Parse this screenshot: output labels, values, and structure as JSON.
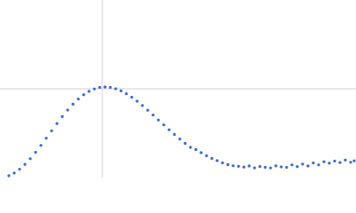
{
  "chart_data": {
    "type": "scatter",
    "x": [
      10,
      16,
      22,
      28,
      34,
      40,
      46,
      52,
      58,
      64,
      70,
      76,
      82,
      88,
      94,
      100,
      106,
      112,
      118,
      124,
      130,
      136,
      142,
      148,
      154,
      160,
      166,
      172,
      178,
      184,
      190,
      196,
      202,
      208,
      214,
      220,
      226,
      232,
      238,
      244,
      250,
      256,
      262,
      268,
      274,
      280,
      286,
      292,
      298,
      304,
      310,
      316,
      322,
      328,
      334,
      340,
      346,
      352,
      358,
      364,
      370,
      376,
      382,
      388,
      394,
      398
    ],
    "series": [
      {
        "color": "#3a6bc4",
        "values": [
          2.0,
          5.0,
          9.3,
          14.8,
          21.2,
          28.4,
          36.2,
          44.3,
          52.6,
          60.8,
          68.6,
          76.0,
          82.6,
          88.4,
          93.3,
          97.1,
          99.8,
          101.5,
          102,
          101.5,
          100,
          97.6,
          94.4,
          90.5,
          86,
          81.1,
          75.8,
          70.4,
          64.8,
          59.3,
          53.8,
          48.5,
          43.4,
          38.5,
          34.0,
          31.5,
          28,
          24.5,
          21.5,
          19,
          16.5,
          14.5,
          13.2,
          12.6,
          11.8,
          13.0,
          10.9,
          12.4,
          11.5,
          10.8,
          13.1,
          12.0,
          11.4,
          14.2,
          12.3,
          15.1,
          13.0,
          16.4,
          14.2,
          17.8,
          16.1,
          18.5,
          16.9,
          19.6,
          17.2,
          18.8
        ]
      }
    ],
    "xlim": [
      0,
      400
    ],
    "ylim": [
      0,
      200
    ],
    "xgrid": [
      115
    ],
    "ygrid": [
      100
    ]
  }
}
